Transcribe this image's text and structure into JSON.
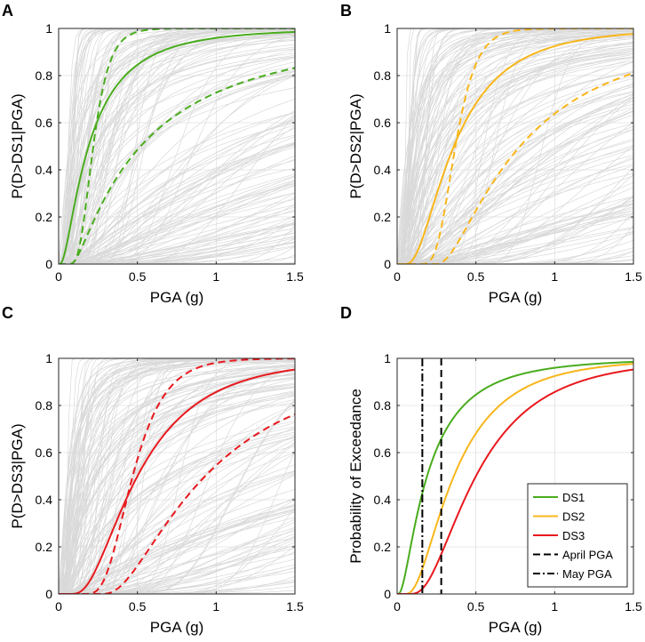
{
  "colors": {
    "DS1": "#4aac1e",
    "DS2": "#f8b61b",
    "DS3": "#e8191e",
    "cloud": "#d9d9d9",
    "vline": "#000000"
  },
  "chart_data": [
    {
      "id": "A",
      "type": "line",
      "panel_label": "A",
      "xlabel": "PGA (g)",
      "ylabel": "P(D>DS1|PGA)",
      "xlim": [
        0,
        1.5
      ],
      "ylim": [
        0,
        1
      ],
      "xticks": [
        0,
        0.5,
        1,
        1.5
      ],
      "xtick_labels": [
        "0",
        "0.5",
        "1",
        "1.5"
      ],
      "yticks": [
        0,
        0.2,
        0.4,
        0.6,
        0.8,
        1
      ],
      "ytick_labels": [
        "0",
        "0.2",
        "0.4",
        "0.6",
        "0.8",
        "1"
      ],
      "grid": true,
      "background_cloud": {
        "description": "simulated fragility curves",
        "color": "#d9d9d9"
      },
      "series": [
        {
          "name": "DS1 median",
          "style": "solid",
          "color": "#4aac1e",
          "median_g": 0.19,
          "beta": 0.95
        },
        {
          "name": "DS1 upper bound",
          "style": "dashed",
          "color": "#4aac1e",
          "median_g": 0.2,
          "beta": 0.4,
          "offset_g": 0.02
        },
        {
          "name": "DS1 lower bound",
          "style": "dashed",
          "color": "#4aac1e",
          "median_g": 0.45,
          "beta": 1.2,
          "offset_g": 0.07
        }
      ]
    },
    {
      "id": "B",
      "type": "line",
      "panel_label": "B",
      "xlabel": "PGA (g)",
      "ylabel": "P(D>DS2|PGA)",
      "xlim": [
        0,
        1.5
      ],
      "ylim": [
        0,
        1
      ],
      "xticks": [
        0,
        0.5,
        1,
        1.5
      ],
      "xtick_labels": [
        "0",
        "0.5",
        "1",
        "1.5"
      ],
      "yticks": [
        0,
        0.2,
        0.4,
        0.6,
        0.8,
        1
      ],
      "ytick_labels": [
        "0",
        "0.2",
        "0.4",
        "0.6",
        "0.8",
        "1"
      ],
      "grid": true,
      "background_cloud": {
        "description": "simulated fragility curves",
        "color": "#d9d9d9"
      },
      "series": [
        {
          "name": "DS2 median",
          "style": "solid",
          "color": "#f8b61b",
          "median_g": 0.33,
          "beta": 0.75,
          "offset_g": 0.03
        },
        {
          "name": "DS2 upper bound",
          "style": "dashed",
          "color": "#f8b61b",
          "median_g": 0.3,
          "beta": 0.35,
          "offset_g": 0.07
        },
        {
          "name": "DS2 lower bound",
          "style": "dashed",
          "color": "#f8b61b",
          "median_g": 0.55,
          "beta": 0.95,
          "offset_g": 0.23
        }
      ]
    },
    {
      "id": "C",
      "type": "line",
      "panel_label": "C",
      "xlabel": "PGA (g)",
      "ylabel": "P(D>DS3|PGA)",
      "xlim": [
        0,
        1.5
      ],
      "ylim": [
        0,
        1
      ],
      "xticks": [
        0,
        0.5,
        1,
        1.5
      ],
      "xtick_labels": [
        "0",
        "0.5",
        "1",
        "1.5"
      ],
      "yticks": [
        0,
        0.2,
        0.4,
        0.6,
        0.8,
        1
      ],
      "ytick_labels": [
        "0",
        "0.2",
        "0.4",
        "0.6",
        "0.8",
        "1"
      ],
      "grid": true,
      "background_cloud": {
        "description": "simulated fragility curves",
        "color": "#d9d9d9"
      },
      "series": [
        {
          "name": "DS3 median",
          "style": "solid",
          "color": "#e8191e",
          "median_g": 0.45,
          "beta": 0.7,
          "offset_g": 0.05
        },
        {
          "name": "DS3 upper bound",
          "style": "dashed",
          "color": "#e8191e",
          "median_g": 0.38,
          "beta": 0.42,
          "offset_g": 0.09
        },
        {
          "name": "DS3 lower bound",
          "style": "dashed",
          "color": "#e8191e",
          "median_g": 0.68,
          "beta": 0.85,
          "offset_g": 0.25
        }
      ]
    },
    {
      "id": "D",
      "type": "line",
      "panel_label": "D",
      "xlabel": "PGA (g)",
      "ylabel": "Probability of Exceedance",
      "xlim": [
        0,
        1.5
      ],
      "ylim": [
        0,
        1
      ],
      "xticks": [
        0,
        0.5,
        1,
        1.5
      ],
      "xtick_labels": [
        "0",
        "0.5",
        "1",
        "1.5"
      ],
      "yticks": [
        0,
        0.2,
        0.4,
        0.6,
        0.8,
        1
      ],
      "ytick_labels": [
        "0",
        "0.2",
        "0.4",
        "0.6",
        "0.8",
        "1"
      ],
      "grid": true,
      "legend_position": "bottom-right",
      "series": [
        {
          "name": "DS1",
          "style": "solid",
          "color": "#4aac1e",
          "median_g": 0.19,
          "beta": 0.95
        },
        {
          "name": "DS2",
          "style": "solid",
          "color": "#f8b61b",
          "median_g": 0.33,
          "beta": 0.75,
          "offset_g": 0.03
        },
        {
          "name": "DS3",
          "style": "solid",
          "color": "#e8191e",
          "median_g": 0.45,
          "beta": 0.7,
          "offset_g": 0.05
        }
      ],
      "vertical_lines": [
        {
          "name": "April PGA",
          "x": 0.28,
          "style": "dashed",
          "color": "#000000"
        },
        {
          "name": "May PGA",
          "x": 0.16,
          "style": "dashdot",
          "color": "#000000"
        }
      ],
      "legend": [
        "DS1",
        "DS2",
        "DS3",
        "April PGA",
        "May PGA"
      ]
    }
  ]
}
